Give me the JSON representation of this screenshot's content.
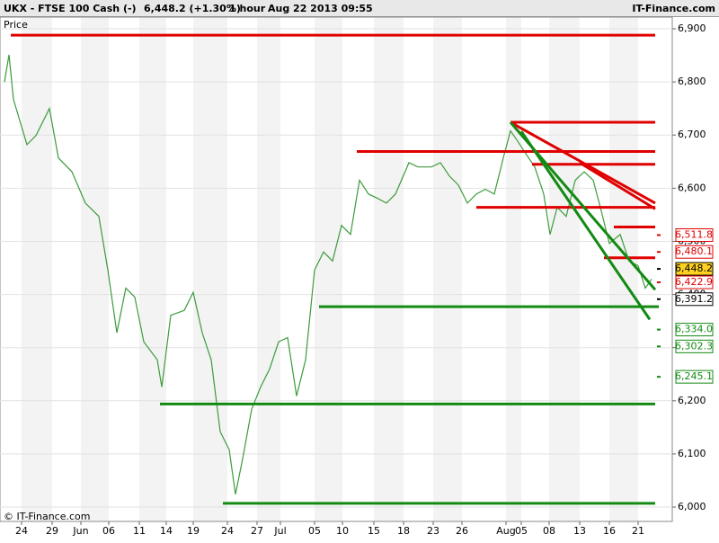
{
  "header": {
    "symbol": "UKX - FTSE 100 Cash (-)",
    "quote": "6,448.2 (+1.30%)",
    "interval": "1 hour",
    "timestamp": "Aug 22 2013 09:55",
    "brand": "IT-Finance.com"
  },
  "chart_data": {
    "type": "line",
    "y_axis_label": "Price",
    "copyright": "© IT-Finance.com",
    "xlim": [
      0,
      74.8
    ],
    "ylim": [
      5973,
      6922
    ],
    "xticks": [
      {
        "value": 2.4,
        "label": "24"
      },
      {
        "value": 5.8,
        "label": "29"
      },
      {
        "value": 9.0,
        "label": "Jun"
      },
      {
        "value": 12.1,
        "label": "06"
      },
      {
        "value": 15.5,
        "label": "11"
      },
      {
        "value": 18.5,
        "label": "14"
      },
      {
        "value": 21.5,
        "label": "19"
      },
      {
        "value": 25.3,
        "label": "24"
      },
      {
        "value": 28.6,
        "label": "27"
      },
      {
        "value": 31.2,
        "label": "Jul"
      },
      {
        "value": 35.0,
        "label": "05"
      },
      {
        "value": 38.1,
        "label": "10"
      },
      {
        "value": 41.6,
        "label": "15"
      },
      {
        "value": 44.9,
        "label": "18"
      },
      {
        "value": 48.2,
        "label": "23"
      },
      {
        "value": 51.4,
        "label": "26"
      },
      {
        "value": 56.3,
        "label": "Aug"
      },
      {
        "value": 58.0,
        "label": "05"
      },
      {
        "value": 61.1,
        "label": "08"
      },
      {
        "value": 64.5,
        "label": "13"
      },
      {
        "value": 67.8,
        "label": "16"
      },
      {
        "value": 71.0,
        "label": "21"
      }
    ],
    "yticks": [
      {
        "value": 6000,
        "label": "6,000"
      },
      {
        "value": 6100,
        "label": "6,100"
      },
      {
        "value": 6200,
        "label": "6,200"
      },
      {
        "value": 6300,
        "label": "6,300"
      },
      {
        "value": 6400,
        "label": "6,400"
      },
      {
        "value": 6500,
        "label": "6,500"
      },
      {
        "value": 6600,
        "label": "6,600"
      },
      {
        "value": 6700,
        "label": "6,700"
      },
      {
        "value": 6800,
        "label": "6,800"
      },
      {
        "value": 6900,
        "label": "6,900"
      }
    ],
    "grid": true,
    "series": [
      {
        "color": "#3c9b3c",
        "x": [
          0.5,
          1.0,
          1.5,
          3.0,
          4.0,
          5.5,
          6.5,
          8.0,
          9.5,
          11.0,
          12.0,
          13.0,
          14.0,
          15.0,
          16.0,
          17.5,
          18.0,
          19.0,
          20.5,
          21.5,
          22.5,
          23.5,
          24.5,
          25.5,
          26.2,
          27.0,
          28.0,
          29.0,
          30.0,
          31.0,
          32.0,
          33.0,
          34.0,
          35.0,
          36.0,
          37.0,
          38.0,
          39.0,
          40.0,
          41.0,
          42.0,
          43.0,
          44.0,
          45.5,
          46.5,
          48.0,
          49.0,
          50.0,
          51.0,
          52.0,
          53.0,
          54.0,
          55.0,
          56.0,
          56.8,
          57.5,
          58.5,
          59.5,
          60.5,
          61.2,
          62.0,
          63.0,
          64.0,
          65.0,
          66.0,
          66.8,
          67.8,
          69.0,
          70.0,
          71.0,
          71.8,
          72.5
        ],
        "values": [
          6800,
          6851,
          6767,
          6682,
          6699,
          6750,
          6657,
          6631,
          6572,
          6547,
          6446,
          6328,
          6412,
          6395,
          6311,
          6277,
          6226,
          6361,
          6370,
          6404,
          6328,
          6277,
          6142,
          6108,
          6024,
          6091,
          6184,
          6226,
          6260,
          6311,
          6319,
          6209,
          6277,
          6446,
          6480,
          6463,
          6530,
          6513,
          6615,
          6589,
          6581,
          6572,
          6589,
          6648,
          6640,
          6640,
          6648,
          6623,
          6606,
          6572,
          6589,
          6598,
          6589,
          6657,
          6708,
          6691,
          6665,
          6640,
          6589,
          6513,
          6564,
          6547,
          6615,
          6631,
          6615,
          6564,
          6496,
          6513,
          6463,
          6454,
          6412,
          6429
        ]
      }
    ],
    "lines": [
      {
        "color": "#e00000",
        "x": [
          1.2,
          72.9
        ],
        "y": [
          6888,
          6888
        ]
      },
      {
        "color": "#e00000",
        "x": [
          56.8,
          72.9
        ],
        "y": [
          6724,
          6724
        ]
      },
      {
        "color": "#e00000",
        "x": [
          39.7,
          72.9
        ],
        "y": [
          6669,
          6669
        ]
      },
      {
        "color": "#e00000",
        "x": [
          59.2,
          72.9
        ],
        "y": [
          6645,
          6645
        ]
      },
      {
        "color": "#e00000",
        "x": [
          53.0,
          72.9
        ],
        "y": [
          6564,
          6564
        ]
      },
      {
        "color": "#e00000",
        "x": [
          68.3,
          72.9
        ],
        "y": [
          6527,
          6527
        ]
      },
      {
        "color": "#e00000",
        "x": [
          67.2,
          72.9
        ],
        "y": [
          6469,
          6469
        ]
      },
      {
        "color": "#e00000",
        "x": [
          56.8,
          72.9
        ],
        "y": [
          6724,
          6572
        ]
      },
      {
        "color": "#e00000",
        "x": [
          64.5,
          72.9
        ],
        "y": [
          6648,
          6561
        ]
      },
      {
        "color": "#138a13",
        "x": [
          56.8,
          72.9
        ],
        "y": [
          6724,
          6409
        ]
      },
      {
        "color": "#138a13",
        "x": [
          58.0,
          72.3
        ],
        "y": [
          6707,
          6353
        ]
      },
      {
        "color": "#138a13",
        "x": [
          35.5,
          73.3
        ],
        "y": [
          6377,
          6377
        ]
      },
      {
        "color": "#138a13",
        "x": [
          17.8,
          72.9
        ],
        "y": [
          6194,
          6194
        ]
      },
      {
        "color": "#138a13",
        "x": [
          24.8,
          72.9
        ],
        "y": [
          6007,
          6007
        ]
      }
    ],
    "price_labels": [
      {
        "value": 6511.8,
        "label": "6,511.8",
        "color": "#e00000"
      },
      {
        "value": 6480.1,
        "label": "6,480.1",
        "color": "#e00000"
      },
      {
        "value": 6448.2,
        "label": "6,448.2",
        "color": "#000000"
      },
      {
        "value": 6422.9,
        "label": "6,422.9",
        "color": "#e00000"
      },
      {
        "value": 6391.2,
        "label": "6,391.2",
        "color": "#000000"
      },
      {
        "value": 6334.0,
        "label": "6,334.0",
        "color": "#138a13"
      },
      {
        "value": 6302.3,
        "label": "6,302.3",
        "color": "#138a13"
      },
      {
        "value": 6245.1,
        "label": "6,245.1",
        "color": "#138a13"
      }
    ],
    "last_price_index": 2
  }
}
